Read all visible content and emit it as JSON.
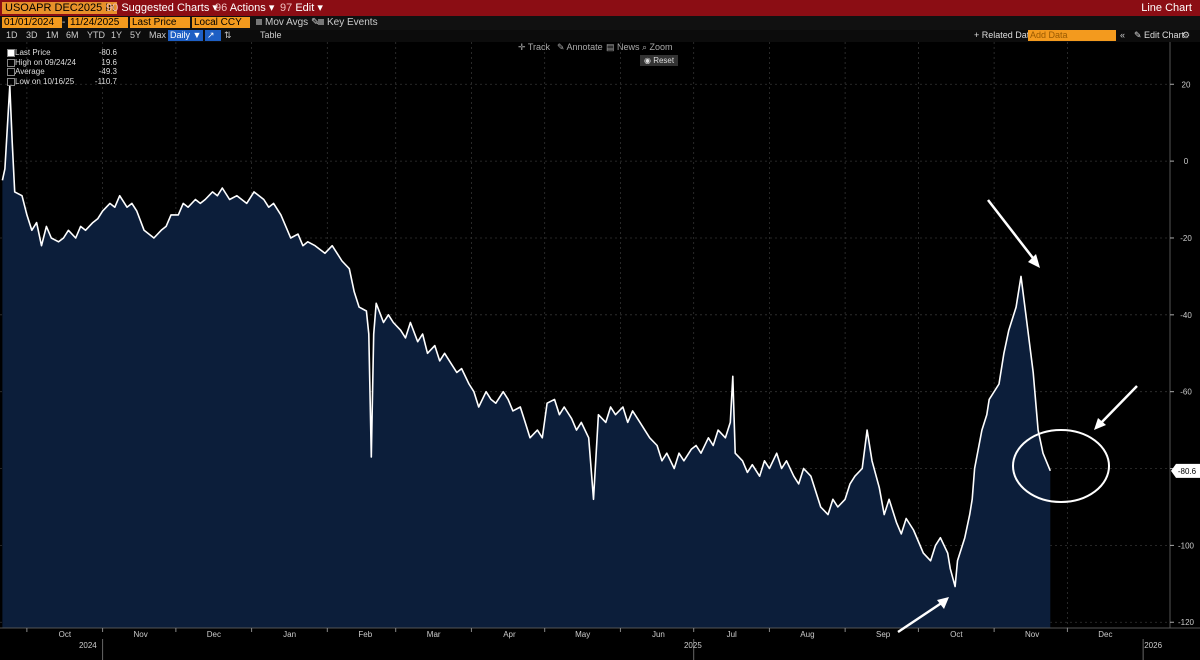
{
  "titlebar": {
    "ticker": "USOAPR DEC2025 In",
    "suggested_num": "90",
    "suggested": "Suggested Charts",
    "actions_num": "96",
    "actions": "Actions",
    "edit_num": "97",
    "edit": "Edit",
    "chart_type": "Line Chart"
  },
  "controls": {
    "start_date": "01/01/2024",
    "end_date": "11/24/2025",
    "field": "Last Price",
    "currency": "Local CCY",
    "mov_avgs": "Mov Avgs",
    "key_events": "Key Events",
    "related": "+ Related Dat",
    "add_data": "Add Data",
    "edit_chart": "Edit Chart"
  },
  "ranges": [
    "1D",
    "3D",
    "1M",
    "6M",
    "YTD",
    "1Y",
    "5Y",
    "Max"
  ],
  "frequency": "Daily",
  "table_label": "Table",
  "tools": {
    "track": "Track",
    "annotate": "Annotate",
    "news": "News",
    "zoom": "Zoom",
    "reset": "Reset"
  },
  "legend": [
    {
      "label": "Last Price",
      "value": "-80.6"
    },
    {
      "label": "High on 09/24/24",
      "value": "19.6"
    },
    {
      "label": "Average",
      "value": "-49.3"
    },
    {
      "label": "Low on 10/16/25",
      "value": "-110.7"
    }
  ],
  "colors": {
    "line": "#ffffff",
    "fill": "#0c1e3a",
    "titlebar": "#8b0d14",
    "field": "#f39a1e"
  },
  "chart_data": {
    "type": "area",
    "ylim": [
      -121.5,
      31
    ],
    "yticks": [
      20,
      0,
      -20,
      -40,
      -60,
      -80,
      -100,
      -120
    ],
    "last_value_label": "-80.6",
    "x_months": [
      {
        "date": "2024-10-01",
        "label": "Oct"
      },
      {
        "date": "2024-11-01",
        "label": "Nov"
      },
      {
        "date": "2024-12-01",
        "label": "Dec"
      },
      {
        "date": "2025-01-01",
        "label": "Jan"
      },
      {
        "date": "2025-02-01",
        "label": "Feb"
      },
      {
        "date": "2025-03-01",
        "label": "Mar"
      },
      {
        "date": "2025-04-01",
        "label": "Apr"
      },
      {
        "date": "2025-05-01",
        "label": "May"
      },
      {
        "date": "2025-06-01",
        "label": "Jun"
      },
      {
        "date": "2025-07-01",
        "label": "Jul"
      },
      {
        "date": "2025-08-01",
        "label": "Aug"
      },
      {
        "date": "2025-09-01",
        "label": "Sep"
      },
      {
        "date": "2025-10-01",
        "label": "Oct"
      },
      {
        "date": "2025-11-01",
        "label": "Nov"
      },
      {
        "date": "2025-12-01",
        "label": "Dec"
      }
    ],
    "x_years": [
      {
        "date": "2024-11-01",
        "label": "2024"
      },
      {
        "date": "2025-07-01",
        "label": "2025"
      },
      {
        "date": "2026-01-01",
        "label": "2026"
      }
    ],
    "series": [
      {
        "points": [
          [
            "2024-09-21",
            -5
          ],
          [
            "2024-09-22",
            -2
          ],
          [
            "2024-09-24",
            19.6
          ],
          [
            "2024-09-25",
            5
          ],
          [
            "2024-09-26",
            -8
          ],
          [
            "2024-09-29",
            -9
          ],
          [
            "2024-10-01",
            -14
          ],
          [
            "2024-10-03",
            -18
          ],
          [
            "2024-10-05",
            -16
          ],
          [
            "2024-10-07",
            -22
          ],
          [
            "2024-10-09",
            -17
          ],
          [
            "2024-10-11",
            -20
          ],
          [
            "2024-10-14",
            -21
          ],
          [
            "2024-10-16",
            -20
          ],
          [
            "2024-10-18",
            -18
          ],
          [
            "2024-10-21",
            -20
          ],
          [
            "2024-10-23",
            -17
          ],
          [
            "2024-10-25",
            -18
          ],
          [
            "2024-10-28",
            -16
          ],
          [
            "2024-10-30",
            -15
          ],
          [
            "2024-11-01",
            -13
          ],
          [
            "2024-11-04",
            -11
          ],
          [
            "2024-11-06",
            -12
          ],
          [
            "2024-11-08",
            -9
          ],
          [
            "2024-11-11",
            -12
          ],
          [
            "2024-11-13",
            -11
          ],
          [
            "2024-11-15",
            -13
          ],
          [
            "2024-11-18",
            -18
          ],
          [
            "2024-11-20",
            -19
          ],
          [
            "2024-11-22",
            -20
          ],
          [
            "2024-11-25",
            -18
          ],
          [
            "2024-11-27",
            -17
          ],
          [
            "2024-11-29",
            -14
          ],
          [
            "2024-12-02",
            -14
          ],
          [
            "2024-12-04",
            -11
          ],
          [
            "2024-12-06",
            -12
          ],
          [
            "2024-12-09",
            -10
          ],
          [
            "2024-12-11",
            -11
          ],
          [
            "2024-12-13",
            -10
          ],
          [
            "2024-12-16",
            -8
          ],
          [
            "2024-12-18",
            -9
          ],
          [
            "2024-12-20",
            -7
          ],
          [
            "2024-12-23",
            -10
          ],
          [
            "2024-12-26",
            -9
          ],
          [
            "2024-12-30",
            -11
          ],
          [
            "2025-01-02",
            -8
          ],
          [
            "2025-01-06",
            -10
          ],
          [
            "2025-01-08",
            -12
          ],
          [
            "2025-01-10",
            -11
          ],
          [
            "2025-01-13",
            -14
          ],
          [
            "2025-01-15",
            -17
          ],
          [
            "2025-01-17",
            -20
          ],
          [
            "2025-01-20",
            -19
          ],
          [
            "2025-01-22",
            -22
          ],
          [
            "2025-01-24",
            -21
          ],
          [
            "2025-01-27",
            -22
          ],
          [
            "2025-01-29",
            -23
          ],
          [
            "2025-01-31",
            -24
          ],
          [
            "2025-02-03",
            -22
          ],
          [
            "2025-02-05",
            -24
          ],
          [
            "2025-02-07",
            -26
          ],
          [
            "2025-02-10",
            -28
          ],
          [
            "2025-02-12",
            -34
          ],
          [
            "2025-02-14",
            -38
          ],
          [
            "2025-02-17",
            -39
          ],
          [
            "2025-02-18",
            -45
          ],
          [
            "2025-02-19",
            -77
          ],
          [
            "2025-02-20",
            -45
          ],
          [
            "2025-02-21",
            -37
          ],
          [
            "2025-02-24",
            -42
          ],
          [
            "2025-02-26",
            -40
          ],
          [
            "2025-02-28",
            -42
          ],
          [
            "2025-03-03",
            -44
          ],
          [
            "2025-03-05",
            -46
          ],
          [
            "2025-03-07",
            -42
          ],
          [
            "2025-03-10",
            -47
          ],
          [
            "2025-03-12",
            -45
          ],
          [
            "2025-03-14",
            -50
          ],
          [
            "2025-03-17",
            -48
          ],
          [
            "2025-03-19",
            -52
          ],
          [
            "2025-03-21",
            -50
          ],
          [
            "2025-03-24",
            -53
          ],
          [
            "2025-03-26",
            -55
          ],
          [
            "2025-03-28",
            -54
          ],
          [
            "2025-03-31",
            -58
          ],
          [
            "2025-04-02",
            -60
          ],
          [
            "2025-04-04",
            -64
          ],
          [
            "2025-04-07",
            -60
          ],
          [
            "2025-04-09",
            -62
          ],
          [
            "2025-04-11",
            -63
          ],
          [
            "2025-04-14",
            -60
          ],
          [
            "2025-04-16",
            -62
          ],
          [
            "2025-04-18",
            -65
          ],
          [
            "2025-04-21",
            -64
          ],
          [
            "2025-04-23",
            -68
          ],
          [
            "2025-04-25",
            -72
          ],
          [
            "2025-04-28",
            -70
          ],
          [
            "2025-04-30",
            -72
          ],
          [
            "2025-05-02",
            -63
          ],
          [
            "2025-05-05",
            -62
          ],
          [
            "2025-05-07",
            -66
          ],
          [
            "2025-05-09",
            -64
          ],
          [
            "2025-05-12",
            -67
          ],
          [
            "2025-05-14",
            -70
          ],
          [
            "2025-05-16",
            -68
          ],
          [
            "2025-05-19",
            -72
          ],
          [
            "2025-05-21",
            -88
          ],
          [
            "2025-05-23",
            -66
          ],
          [
            "2025-05-26",
            -68
          ],
          [
            "2025-05-28",
            -64
          ],
          [
            "2025-05-30",
            -66
          ],
          [
            "2025-06-02",
            -64
          ],
          [
            "2025-06-04",
            -68
          ],
          [
            "2025-06-06",
            -65
          ],
          [
            "2025-06-09",
            -68
          ],
          [
            "2025-06-11",
            -70
          ],
          [
            "2025-06-13",
            -72
          ],
          [
            "2025-06-16",
            -74
          ],
          [
            "2025-06-18",
            -78
          ],
          [
            "2025-06-20",
            -76
          ],
          [
            "2025-06-23",
            -80
          ],
          [
            "2025-06-25",
            -76
          ],
          [
            "2025-06-27",
            -78
          ],
          [
            "2025-06-30",
            -75
          ],
          [
            "2025-07-02",
            -74
          ],
          [
            "2025-07-04",
            -76
          ],
          [
            "2025-07-07",
            -72
          ],
          [
            "2025-07-09",
            -74
          ],
          [
            "2025-07-11",
            -70
          ],
          [
            "2025-07-14",
            -72
          ],
          [
            "2025-07-16",
            -68
          ],
          [
            "2025-07-17",
            -56
          ],
          [
            "2025-07-18",
            -76
          ],
          [
            "2025-07-21",
            -78
          ],
          [
            "2025-07-23",
            -81
          ],
          [
            "2025-07-25",
            -79
          ],
          [
            "2025-07-28",
            -82
          ],
          [
            "2025-07-30",
            -78
          ],
          [
            "2025-08-01",
            -80
          ],
          [
            "2025-08-04",
            -76
          ],
          [
            "2025-08-06",
            -80
          ],
          [
            "2025-08-08",
            -78
          ],
          [
            "2025-08-11",
            -82
          ],
          [
            "2025-08-13",
            -84
          ],
          [
            "2025-08-15",
            -80
          ],
          [
            "2025-08-18",
            -82
          ],
          [
            "2025-08-20",
            -86
          ],
          [
            "2025-08-22",
            -90
          ],
          [
            "2025-08-25",
            -92
          ],
          [
            "2025-08-27",
            -88
          ],
          [
            "2025-08-29",
            -90
          ],
          [
            "2025-09-01",
            -88
          ],
          [
            "2025-09-03",
            -84
          ],
          [
            "2025-09-05",
            -82
          ],
          [
            "2025-09-08",
            -80
          ],
          [
            "2025-09-10",
            -70
          ],
          [
            "2025-09-12",
            -78
          ],
          [
            "2025-09-15",
            -85
          ],
          [
            "2025-09-17",
            -92
          ],
          [
            "2025-09-19",
            -88
          ],
          [
            "2025-09-22",
            -94
          ],
          [
            "2025-09-24",
            -97
          ],
          [
            "2025-09-26",
            -93
          ],
          [
            "2025-09-29",
            -96
          ],
          [
            "2025-10-01",
            -99
          ],
          [
            "2025-10-03",
            -102
          ],
          [
            "2025-10-06",
            -104
          ],
          [
            "2025-10-08",
            -100
          ],
          [
            "2025-10-10",
            -98
          ],
          [
            "2025-10-13",
            -102
          ],
          [
            "2025-10-14",
            -106
          ],
          [
            "2025-10-16",
            -110.7
          ],
          [
            "2025-10-17",
            -104
          ],
          [
            "2025-10-20",
            -98
          ],
          [
            "2025-10-22",
            -92
          ],
          [
            "2025-10-23",
            -88
          ],
          [
            "2025-10-24",
            -80
          ],
          [
            "2025-10-27",
            -70
          ],
          [
            "2025-10-29",
            -66
          ],
          [
            "2025-10-30",
            -62
          ],
          [
            "2025-11-03",
            -58
          ],
          [
            "2025-11-05",
            -50
          ],
          [
            "2025-11-07",
            -44
          ],
          [
            "2025-11-10",
            -38
          ],
          [
            "2025-11-12",
            -30
          ],
          [
            "2025-11-14",
            -40
          ],
          [
            "2025-11-17",
            -55
          ],
          [
            "2025-11-19",
            -70
          ],
          [
            "2025-11-21",
            -76
          ],
          [
            "2025-11-24",
            -80.6
          ]
        ]
      }
    ]
  }
}
